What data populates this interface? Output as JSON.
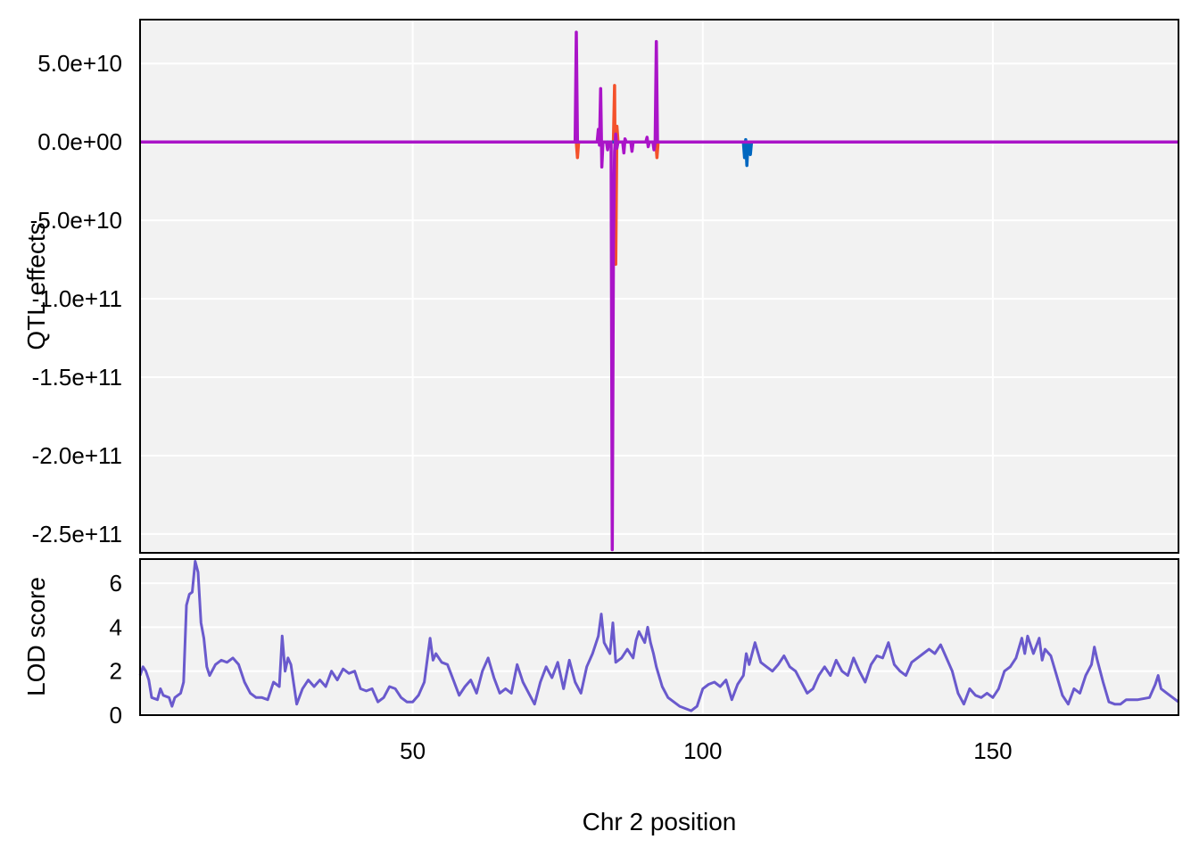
{
  "chart_data": [
    {
      "type": "line",
      "panel": "top",
      "ylabel": "QTL effects",
      "xlim": [
        3,
        182
      ],
      "ylim": [
        -262000000000,
        78000000000
      ],
      "yticks": [
        50000000000,
        0,
        -50000000000,
        -100000000000,
        -150000000000,
        -200000000000,
        -250000000000
      ],
      "ytick_labels": [
        "5.0e+10",
        "0.0e+00",
        "-5.0e+10",
        "-1.0e+11",
        "-1.5e+11",
        "-2.0e+11",
        "-2.5e+11"
      ],
      "xgrid": [
        50,
        100,
        150
      ],
      "series": [
        {
          "color": "#f4512b",
          "points": [
            [
              3,
              0
            ],
            [
              78.2,
              0
            ],
            [
              78.4,
              -10000000000.0
            ],
            [
              78.6,
              0
            ],
            [
              84.6,
              0
            ],
            [
              84.8,
              36000000000.0
            ],
            [
              85.0,
              -78000000000.0
            ],
            [
              85.2,
              10000000000.0
            ],
            [
              85.4,
              0
            ],
            [
              90.4,
              0
            ],
            [
              90.6,
              -1500000000.0
            ],
            [
              90.8,
              0
            ],
            [
              91.9,
              0
            ],
            [
              92.1,
              -10000000000.0
            ],
            [
              92.3,
              0
            ],
            [
              182,
              0
            ]
          ]
        },
        {
          "color": "#0067c0",
          "points": [
            [
              3,
              0
            ],
            [
              107.0,
              0
            ],
            [
              107.2,
              -10000000000.0
            ],
            [
              107.4,
              1500000000.0
            ],
            [
              107.6,
              -15000000000.0
            ],
            [
              107.8,
              0
            ],
            [
              108.2,
              -8000000000.0
            ],
            [
              108.4,
              0
            ],
            [
              182,
              0
            ]
          ]
        },
        {
          "color": "#aa14c8",
          "points": [
            [
              3,
              0
            ],
            [
              78.0,
              0
            ],
            [
              78.2,
              70000000000.0
            ],
            [
              78.4,
              0
            ],
            [
              81.8,
              0
            ],
            [
              82.0,
              8000000000.0
            ],
            [
              82.2,
              -2000000000.0
            ],
            [
              82.4,
              34000000000.0
            ],
            [
              82.6,
              -16000000000.0
            ],
            [
              82.8,
              0
            ],
            [
              83.4,
              0
            ],
            [
              83.6,
              -5000000000.0
            ],
            [
              83.8,
              0
            ],
            [
              84.2,
              0
            ],
            [
              84.4,
              -260000000000.0
            ],
            [
              84.6,
              -69000000000.0
            ],
            [
              84.8,
              -6000000000.0
            ],
            [
              85.0,
              5000000000.0
            ],
            [
              85.2,
              -4000000000.0
            ],
            [
              85.4,
              0
            ],
            [
              86.2,
              0
            ],
            [
              86.4,
              -7000000000.0
            ],
            [
              86.6,
              2000000000.0
            ],
            [
              86.8,
              0
            ],
            [
              87.6,
              0
            ],
            [
              87.8,
              -6000000000.0
            ],
            [
              88.0,
              0
            ],
            [
              90.2,
              0
            ],
            [
              90.4,
              3000000000.0
            ],
            [
              90.6,
              -3000000000.0
            ],
            [
              90.8,
              0
            ],
            [
              91.4,
              0
            ],
            [
              91.6,
              -5000000000.0
            ],
            [
              91.8,
              0
            ],
            [
              92.0,
              64000000000.0
            ],
            [
              92.2,
              0
            ],
            [
              182,
              0
            ]
          ]
        }
      ]
    },
    {
      "type": "line",
      "panel": "bottom",
      "xlabel": "Chr 2 position",
      "ylabel": "LOD score",
      "xlim": [
        3,
        182
      ],
      "ylim": [
        0,
        7.1
      ],
      "yticks": [
        0,
        2,
        4,
        6
      ],
      "ytick_labels": [
        "0",
        "2",
        "4",
        "6"
      ],
      "xticks": [
        50,
        100,
        150
      ],
      "xtick_labels": [
        "50",
        "100",
        "150"
      ],
      "series": [
        {
          "color": "#6a5acd",
          "points": [
            [
              3,
              1.8
            ],
            [
              3.5,
              2.2
            ],
            [
              4,
              2.0
            ],
            [
              4.5,
              1.6
            ],
            [
              5,
              0.8
            ],
            [
              6,
              0.7
            ],
            [
              6.5,
              1.2
            ],
            [
              7,
              0.9
            ],
            [
              8,
              0.8
            ],
            [
              8.5,
              0.4
            ],
            [
              9,
              0.8
            ],
            [
              10,
              1.0
            ],
            [
              10.5,
              1.5
            ],
            [
              11,
              5.0
            ],
            [
              11.5,
              5.5
            ],
            [
              12,
              5.6
            ],
            [
              12.5,
              7.0
            ],
            [
              13,
              6.5
            ],
            [
              13.5,
              4.2
            ],
            [
              14,
              3.5
            ],
            [
              14.5,
              2.2
            ],
            [
              15,
              1.8
            ],
            [
              16,
              2.3
            ],
            [
              17,
              2.5
            ],
            [
              18,
              2.4
            ],
            [
              19,
              2.6
            ],
            [
              20,
              2.3
            ],
            [
              21,
              1.5
            ],
            [
              22,
              1.0
            ],
            [
              23,
              0.8
            ],
            [
              24,
              0.8
            ],
            [
              25,
              0.7
            ],
            [
              26,
              1.5
            ],
            [
              27,
              1.3
            ],
            [
              27.5,
              3.6
            ],
            [
              28,
              2.0
            ],
            [
              28.5,
              2.6
            ],
            [
              29,
              2.3
            ],
            [
              30,
              0.5
            ],
            [
              31,
              1.2
            ],
            [
              32,
              1.6
            ],
            [
              33,
              1.3
            ],
            [
              34,
              1.6
            ],
            [
              35,
              1.3
            ],
            [
              36,
              2.0
            ],
            [
              37,
              1.6
            ],
            [
              38,
              2.1
            ],
            [
              39,
              1.9
            ],
            [
              40,
              2.0
            ],
            [
              41,
              1.2
            ],
            [
              42,
              1.1
            ],
            [
              43,
              1.2
            ],
            [
              44,
              0.6
            ],
            [
              45,
              0.8
            ],
            [
              46,
              1.3
            ],
            [
              47,
              1.2
            ],
            [
              48,
              0.8
            ],
            [
              49,
              0.6
            ],
            [
              50,
              0.6
            ],
            [
              51,
              0.9
            ],
            [
              52,
              1.5
            ],
            [
              53,
              3.5
            ],
            [
              53.5,
              2.5
            ],
            [
              54,
              2.8
            ],
            [
              55,
              2.4
            ],
            [
              56,
              2.3
            ],
            [
              57,
              1.6
            ],
            [
              58,
              0.9
            ],
            [
              59,
              1.3
            ],
            [
              60,
              1.6
            ],
            [
              61,
              1.0
            ],
            [
              62,
              2.0
            ],
            [
              63,
              2.6
            ],
            [
              64,
              1.7
            ],
            [
              65,
              1.0
            ],
            [
              66,
              1.2
            ],
            [
              67,
              1.0
            ],
            [
              68,
              2.3
            ],
            [
              69,
              1.5
            ],
            [
              70,
              1.0
            ],
            [
              71,
              0.5
            ],
            [
              72,
              1.5
            ],
            [
              73,
              2.2
            ],
            [
              74,
              1.7
            ],
            [
              75,
              2.4
            ],
            [
              76,
              1.2
            ],
            [
              77,
              2.5
            ],
            [
              78,
              1.5
            ],
            [
              79,
              1.0
            ],
            [
              80,
              2.2
            ],
            [
              81,
              2.8
            ],
            [
              82,
              3.6
            ],
            [
              82.5,
              4.6
            ],
            [
              83,
              3.3
            ],
            [
              84,
              2.8
            ],
            [
              84.5,
              4.2
            ],
            [
              85,
              2.4
            ],
            [
              86,
              2.6
            ],
            [
              87,
              3.0
            ],
            [
              88,
              2.6
            ],
            [
              88.5,
              3.4
            ],
            [
              89,
              3.8
            ],
            [
              90,
              3.3
            ],
            [
              90.5,
              4.0
            ],
            [
              91,
              3.3
            ],
            [
              91.5,
              2.8
            ],
            [
              92,
              2.2
            ],
            [
              93,
              1.3
            ],
            [
              94,
              0.8
            ],
            [
              95,
              0.6
            ],
            [
              96,
              0.4
            ],
            [
              97,
              0.3
            ],
            [
              98,
              0.2
            ],
            [
              99,
              0.4
            ],
            [
              100,
              1.2
            ],
            [
              101,
              1.4
            ],
            [
              102,
              1.5
            ],
            [
              103,
              1.3
            ],
            [
              104,
              1.6
            ],
            [
              105,
              0.7
            ],
            [
              106,
              1.4
            ],
            [
              107,
              1.8
            ],
            [
              107.5,
              2.8
            ],
            [
              108,
              2.3
            ],
            [
              109,
              3.3
            ],
            [
              110,
              2.4
            ],
            [
              111,
              2.2
            ],
            [
              112,
              2.0
            ],
            [
              113,
              2.3
            ],
            [
              114,
              2.7
            ],
            [
              115,
              2.2
            ],
            [
              116,
              2.0
            ],
            [
              117,
              1.5
            ],
            [
              118,
              1.0
            ],
            [
              119,
              1.2
            ],
            [
              120,
              1.8
            ],
            [
              121,
              2.2
            ],
            [
              122,
              1.8
            ],
            [
              123,
              2.5
            ],
            [
              124,
              2.0
            ],
            [
              125,
              1.8
            ],
            [
              126,
              2.6
            ],
            [
              127,
              2.0
            ],
            [
              128,
              1.5
            ],
            [
              129,
              2.3
            ],
            [
              130,
              2.7
            ],
            [
              131,
              2.6
            ],
            [
              132,
              3.3
            ],
            [
              133,
              2.3
            ],
            [
              134,
              2.0
            ],
            [
              135,
              1.8
            ],
            [
              136,
              2.4
            ],
            [
              137,
              2.6
            ],
            [
              138,
              2.8
            ],
            [
              139,
              3.0
            ],
            [
              140,
              2.8
            ],
            [
              141,
              3.2
            ],
            [
              142,
              2.6
            ],
            [
              143,
              2.0
            ],
            [
              144,
              1.0
            ],
            [
              145,
              0.5
            ],
            [
              146,
              1.2
            ],
            [
              147,
              0.9
            ],
            [
              148,
              0.8
            ],
            [
              149,
              1.0
            ],
            [
              150,
              0.8
            ],
            [
              151,
              1.2
            ],
            [
              152,
              2.0
            ],
            [
              153,
              2.2
            ],
            [
              154,
              2.6
            ],
            [
              155,
              3.5
            ],
            [
              155.5,
              2.8
            ],
            [
              156,
              3.6
            ],
            [
              157,
              2.8
            ],
            [
              158,
              3.5
            ],
            [
              158.5,
              2.5
            ],
            [
              159,
              3.0
            ],
            [
              160,
              2.7
            ],
            [
              161,
              1.8
            ],
            [
              162,
              0.9
            ],
            [
              163,
              0.5
            ],
            [
              164,
              1.2
            ],
            [
              165,
              1.0
            ],
            [
              166,
              1.8
            ],
            [
              167,
              2.3
            ],
            [
              167.5,
              3.1
            ],
            [
              168,
              2.5
            ],
            [
              169,
              1.5
            ],
            [
              170,
              0.6
            ],
            [
              171,
              0.5
            ],
            [
              172,
              0.5
            ],
            [
              173,
              0.7
            ],
            [
              175,
              0.7
            ],
            [
              177,
              0.8
            ],
            [
              178,
              1.4
            ],
            [
              178.5,
              1.8
            ],
            [
              179,
              1.2
            ],
            [
              180,
              1.0
            ],
            [
              181,
              0.8
            ],
            [
              182,
              0.6
            ]
          ]
        }
      ]
    }
  ]
}
